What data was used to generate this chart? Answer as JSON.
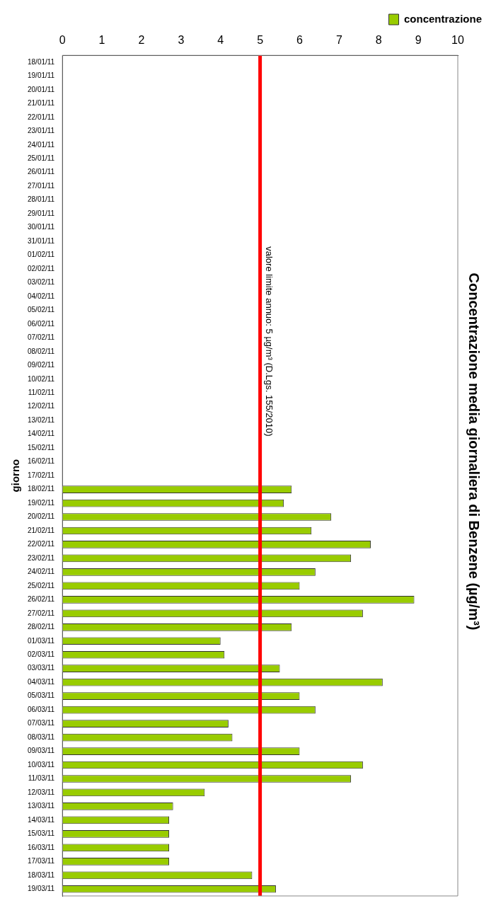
{
  "chart_data": {
    "type": "bar",
    "orientation": "horizontal",
    "title": "Concentrazione media giornaliera di Benzene (µg/m³)",
    "ylabel": "giorno",
    "categories": [
      "18/01/11",
      "19/01/11",
      "20/01/11",
      "21/01/11",
      "22/01/11",
      "23/01/11",
      "24/01/11",
      "25/01/11",
      "26/01/11",
      "27/01/11",
      "28/01/11",
      "29/01/11",
      "30/01/11",
      "31/01/11",
      "01/02/11",
      "02/02/11",
      "03/02/11",
      "04/02/11",
      "05/02/11",
      "06/02/11",
      "07/02/11",
      "08/02/11",
      "09/02/11",
      "10/02/11",
      "11/02/11",
      "12/02/11",
      "13/02/11",
      "14/02/11",
      "15/02/11",
      "16/02/11",
      "17/02/11",
      "18/02/11",
      "19/02/11",
      "20/02/11",
      "21/02/11",
      "22/02/11",
      "23/02/11",
      "24/02/11",
      "25/02/11",
      "26/02/11",
      "27/02/11",
      "28/02/11",
      "01/03/11",
      "02/03/11",
      "03/03/11",
      "04/03/11",
      "05/03/11",
      "06/03/11",
      "07/03/11",
      "08/03/11",
      "09/03/11",
      "10/03/11",
      "11/03/11",
      "12/03/11",
      "13/03/11",
      "14/03/11",
      "15/03/11",
      "16/03/11",
      "17/03/11",
      "18/03/11",
      "19/03/11"
    ],
    "series": [
      {
        "name": "concentrazione",
        "color": "#99cc00",
        "values": [
          null,
          null,
          null,
          null,
          null,
          null,
          null,
          null,
          null,
          null,
          null,
          null,
          null,
          null,
          null,
          null,
          null,
          null,
          null,
          null,
          null,
          null,
          null,
          null,
          null,
          null,
          null,
          null,
          null,
          null,
          null,
          5.8,
          5.6,
          6.8,
          6.3,
          7.8,
          7.3,
          6.4,
          6.0,
          8.9,
          7.6,
          5.8,
          4.0,
          4.1,
          5.5,
          8.1,
          6.0,
          6.4,
          4.2,
          4.3,
          6.0,
          7.6,
          7.3,
          3.6,
          2.8,
          2.7,
          2.7,
          2.7,
          2.7,
          4.8,
          5.4
        ]
      }
    ],
    "xlim": [
      0,
      10
    ],
    "xticks": [
      0,
      1,
      2,
      3,
      4,
      5,
      6,
      7,
      8,
      9,
      10
    ],
    "grid": false,
    "legend": "top right",
    "ref_lines": [
      {
        "axis": "x",
        "value": 5,
        "label": "valore limite annuo: 5 µg/m³ (D.Lgs. 155/2010)",
        "color": "#ff0000"
      }
    ]
  }
}
